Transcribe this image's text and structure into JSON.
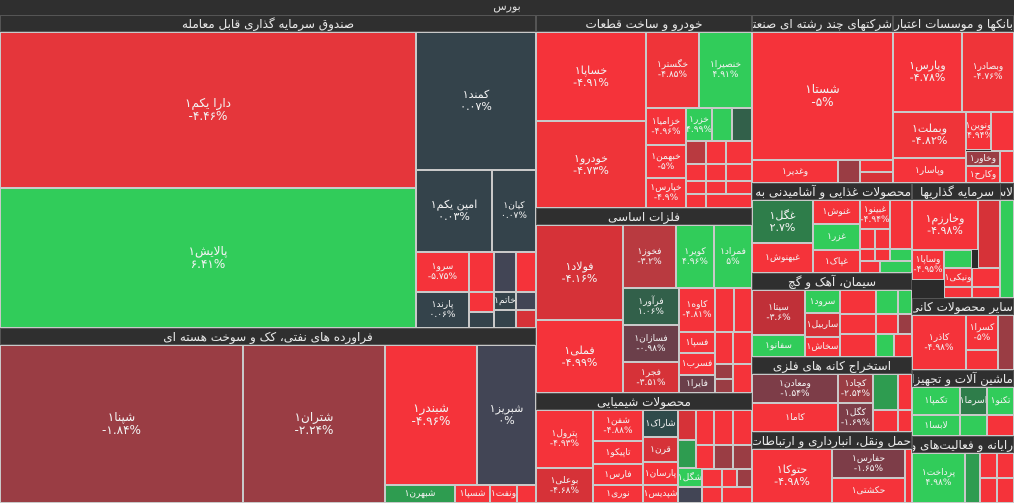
{
  "title": "بورس",
  "colors": {
    "red": "#f5333a",
    "red2": "#e5363b",
    "red3": "#d63238",
    "red4": "#b93a40",
    "maroon": "#9a3d44",
    "plum": "#6b3f4a",
    "slate": "#34434b",
    "slate2": "#424555",
    "green": "#31cc5a",
    "green2": "#2e9c50",
    "dgreen": "#32604a"
  },
  "sectors": {
    "etf": "صندوق سرمایه گذاری قابل معامله",
    "oil": "فراورده های نفتی، کک و سوخت هسته ای",
    "auto": "خودرو و ساخت قطعات",
    "metals": "فلزات اساسی",
    "chem": "محصولات شیمیایی",
    "multi": "شرکتهای چند رشته ای صنعتی",
    "banks": "بانکها و موسسات اعتباری",
    "food": "محصولات غذایی و آشامیدنی به جز قند و شکر",
    "invest": "سرمایه گذاریها",
    "cement": "سیمان، آهک و گچ",
    "nonmetal": "سایر محصولات کانی غیرفلزی",
    "mining": "استخراج کانه های فلزی",
    "transport": "حمل ونقل، انبارداری و ارتباطات",
    "machinery": "ماشین آلات و تجهیزات",
    "fin": "رایانه و فعالیت‌های وابسته",
    "misc": "لاستیک"
  },
  "tiles": {
    "dara": {
      "label": "دارا یکم۱",
      "change": "-۴.۴۶%",
      "color": "#e5363b"
    },
    "palayesh": {
      "label": "پالایش۱",
      "change": "۶.۴۱%",
      "color": "#31cc5a"
    },
    "kamand": {
      "label": "کمند۱",
      "change": "۰.۰۷%",
      "color": "#34434b"
    },
    "amin": {
      "label": "امین یکم۱",
      "change": "۰.۰۳%",
      "color": "#34434b"
    },
    "kian": {
      "label": "کیان۱",
      "change": "۰.۰۷%",
      "color": "#34434b"
    },
    "sarv": {
      "label": "سرو۱",
      "change": "-۵.۷۵%",
      "color": "#f5333a"
    },
    "parand": {
      "label": "پارند۱",
      "change": "۰.۰۶%",
      "color": "#34434b"
    },
    "khatam": {
      "label": "خاتم۱",
      "change": "",
      "color": "#34434b"
    },
    "shepna": {
      "label": "شپنا۱",
      "change": "-۱.۸۴%",
      "color": "#9a3d44"
    },
    "shetran": {
      "label": "شتران۱",
      "change": "-۲.۲۴%",
      "color": "#9a3d44"
    },
    "shebandar": {
      "label": "شبندر۱",
      "change": "-۴.۹۶%",
      "color": "#f5333a"
    },
    "shebriz": {
      "label": "شبریز۱",
      "change": "۰%",
      "color": "#424555"
    },
    "shebahran": {
      "label": "شبهرن۱",
      "change": "",
      "color": "#2e9c50"
    },
    "shespa": {
      "label": "شسپا۱",
      "change": "",
      "color": "#f5333a"
    },
    "vanaft": {
      "label": "ونفت۱",
      "change": "",
      "color": "#f5333a"
    },
    "khsapa": {
      "label": "خساپا۱",
      "change": "-۴.۹۱%",
      "color": "#f5333a"
    },
    "khodro": {
      "label": "خودرو۱",
      "change": "-۴.۷۳%",
      "color": "#ef3439"
    },
    "khgostar": {
      "label": "خگستر۱",
      "change": "-۴.۸۵%",
      "color": "#ef3439"
    },
    "khnasir": {
      "label": "خنصیرا۱",
      "change": "۴.۹۱%",
      "color": "#31cc5a"
    },
    "khzamia": {
      "label": "خزامیا۱",
      "change": "-۴.۹۶%",
      "color": "#f5333a"
    },
    "khazar": {
      "label": "خزر۱",
      "change": "۴.۹۹%",
      "color": "#31cc5a"
    },
    "khbahman": {
      "label": "خبهمن۱",
      "change": "-۵%",
      "color": "#f5333a"
    },
    "khpars": {
      "label": "خپارس۱",
      "change": "-۴.۹%",
      "color": "#f5333a"
    },
    "foolad": {
      "label": "فولاد۱",
      "change": "-۴.۱۶%",
      "color": "#d63238"
    },
    "fameli": {
      "label": "فملی۱",
      "change": "-۴.۹۹%",
      "color": "#f5333a"
    },
    "fakhooz": {
      "label": "فخوز۱",
      "change": "-۳.۲%",
      "color": "#b93a40"
    },
    "kavir": {
      "label": "کویر۱",
      "change": "۴.۹۶%",
      "color": "#31cc5a"
    },
    "famrad": {
      "label": "فمراد۱",
      "change": "۵%",
      "color": "#31cc5a"
    },
    "faravar": {
      "label": "فرآور۱",
      "change": "۱.۰۶%",
      "color": "#32604a"
    },
    "fasazan": {
      "label": "فسازان۱",
      "change": "-۰.۹۸%",
      "color": "#6b3f4a"
    },
    "fajr": {
      "label": "فجر۱",
      "change": "-۳.۵۱%",
      "color": "#d63238"
    },
    "kaveh": {
      "label": "کاوه۱",
      "change": "-۴.۸۱%",
      "color": "#f5333a"
    },
    "faspa": {
      "label": "فسپا۱",
      "change": "",
      "color": "#f5333a"
    },
    "fasorb": {
      "label": "فسرب۱",
      "change": "",
      "color": "#f5333a"
    },
    "fayra": {
      "label": "فایرا۱",
      "change": "",
      "color": "#6b3f4a"
    },
    "petrol": {
      "label": "پترول۱",
      "change": "-۴.۹۳%",
      "color": "#f5333a"
    },
    "booali": {
      "label": "بوعلی۱",
      "change": "-۴.۶۸%",
      "color": "#d63238"
    },
    "shafan": {
      "label": "شفن۱",
      "change": "-۴.۸۸%",
      "color": "#f5333a"
    },
    "tapiko": {
      "label": "تاپیکو۱",
      "change": "",
      "color": "#f5333a"
    },
    "fars": {
      "label": "فارس۱",
      "change": "",
      "color": "#f5333a"
    },
    "noori": {
      "label": "نوری۱",
      "change": "",
      "color": "#f5333a"
    },
    "sharak": {
      "label": "شاراک۱",
      "change": "",
      "color": "#2f4a4a"
    },
    "gharn": {
      "label": "قرن۱",
      "change": "",
      "color": "#d63238"
    },
    "parsan": {
      "label": "پارسان۱",
      "change": "",
      "color": "#f5333a"
    },
    "shepdis": {
      "label": "شپدیس۱",
      "change": "",
      "color": "#f5333a"
    },
    "shegol": {
      "label": "شگل۱",
      "change": "",
      "color": "#31cc5a"
    },
    "shasta": {
      "label": "شستا۱",
      "change": "-۵%",
      "color": "#f5333a"
    },
    "vaghadir": {
      "label": "وغدیر۱",
      "change": "",
      "color": "#f5333a"
    },
    "vapars": {
      "label": "وپارس۱",
      "change": "-۴.۷۸%",
      "color": "#f5333a"
    },
    "vabsader": {
      "label": "وبصادر۱",
      "change": "-۴.۷۶%",
      "color": "#ef3439"
    },
    "vabmelat": {
      "label": "وبملت۱",
      "change": "-۴.۸۲%",
      "color": "#ef3439"
    },
    "vanovin": {
      "label": "ونوین۱",
      "change": "-۴.۹۴%",
      "color": "#f5333a"
    },
    "vapasar": {
      "label": "وپاسار۱",
      "change": "",
      "color": "#f5333a"
    },
    "vakhavar": {
      "label": "وخاور۱",
      "change": "",
      "color": "#9a3d44"
    },
    "vakarafarin": {
      "label": "وکارح۱",
      "change": "",
      "color": "#f5333a"
    },
    "ghegol": {
      "label": "غگل۱",
      "change": "۲.۷%",
      "color": "#2e7d4a"
    },
    "ghbehnoosh": {
      "label": "غبهنوش۱",
      "change": "",
      "color": "#f5333a"
    },
    "ghnoosh": {
      "label": "غنوش۱",
      "change": "",
      "color": "#f5333a"
    },
    "ghazar": {
      "label": "غزر۱",
      "change": "",
      "color": "#31cc5a"
    },
    "ghpak": {
      "label": "غپاک۱",
      "change": "",
      "color": "#f5333a"
    },
    "ghbino": {
      "label": "غبینو۱",
      "change": "-۴.۹۴%",
      "color": "#f5333a"
    },
    "vakharazm": {
      "label": "وخارزم۱",
      "change": "-۴.۹۸%",
      "color": "#f5333a"
    },
    "vasapa": {
      "label": "وساپا۱",
      "change": "-۴.۹۵%",
      "color": "#f5333a"
    },
    "vaniki": {
      "label": "ونیکی۱",
      "change": "",
      "color": "#f5333a"
    },
    "sita": {
      "label": "سیتا۱",
      "change": "-۳.۶%",
      "color": "#c03038"
    },
    "sarood": {
      "label": "سرود۱",
      "change": "",
      "color": "#31cc5a"
    },
    "sarbil": {
      "label": "ساربیل۱",
      "change": "",
      "color": "#d63238"
    },
    "sakhash": {
      "label": "سخاش۱",
      "change": "",
      "color": "#f5333a"
    },
    "safano": {
      "label": "سفانو۱",
      "change": "",
      "color": "#31cc5a"
    },
    "kazar": {
      "label": "کاذر۱",
      "change": "-۴.۹۸%",
      "color": "#f5333a"
    },
    "kesra": {
      "label": "کسرا۱",
      "change": "-۵%",
      "color": "#f5333a"
    },
    "vamaaden": {
      "label": "ومعادن۱",
      "change": "-۱.۵۴%",
      "color": "#7d3d48"
    },
    "kachad": {
      "label": "کچاد۱",
      "change": "-۲.۵۴%",
      "color": "#9a3d44"
    },
    "kama": {
      "label": "کاما۱",
      "change": "",
      "color": "#f5333a"
    },
    "kegol": {
      "label": "کگل۱",
      "change": "-۱.۶۹%",
      "color": "#7d3d48"
    },
    "hatoka": {
      "label": "حتوکا۱",
      "change": "-۴.۹۸%",
      "color": "#f5333a"
    },
    "hafars": {
      "label": "حفارس۱",
      "change": "-۱.۶۵%",
      "color": "#7d3d48"
    },
    "hakeshti": {
      "label": "حکشتی۱",
      "change": "",
      "color": "#f5333a"
    },
    "takampa": {
      "label": "تکمپا۱",
      "change": "",
      "color": "#31cc5a"
    },
    "labsa": {
      "label": "لابسا۱",
      "change": "",
      "color": "#31cc5a"
    },
    "asrma": {
      "label": "اسرما۱",
      "change": "",
      "color": "#2e7d4a"
    },
    "takno": {
      "label": "تکنو۱",
      "change": "",
      "color": "#31cc5a"
    },
    "pardakht": {
      "label": "پرداخت۱",
      "change": "۴.۹۸%",
      "color": "#31cc5a"
    }
  }
}
